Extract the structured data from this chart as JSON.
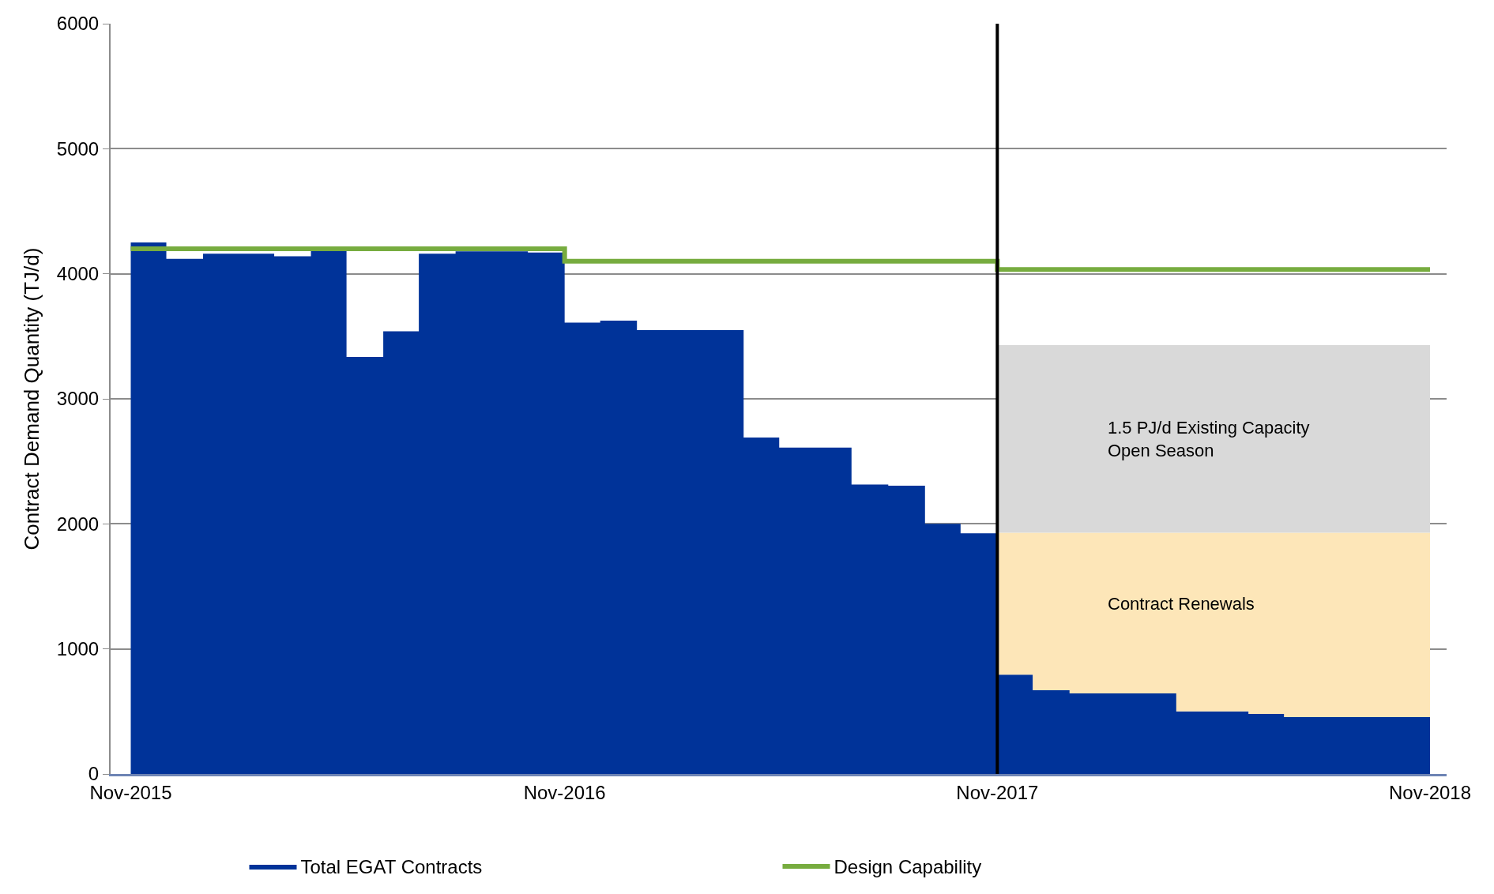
{
  "chart_data": {
    "type": "area",
    "stacked": true,
    "ylabel": "Contract Demand Quantity (TJ/d)",
    "x": [
      "2015-11",
      "2015-12",
      "2016-01",
      "2016-02",
      "2016-03",
      "2016-04",
      "2016-05",
      "2016-06",
      "2016-07",
      "2016-08",
      "2016-09",
      "2016-10",
      "2016-11",
      "2016-12",
      "2017-01",
      "2017-02",
      "2017-03",
      "2017-04",
      "2017-05",
      "2017-06",
      "2017-07",
      "2017-08",
      "2017-09",
      "2017-10",
      "2017-11",
      "2017-12",
      "2018-01",
      "2018-02",
      "2018-03",
      "2018-04",
      "2018-05",
      "2018-06",
      "2018-07",
      "2018-08",
      "2018-09",
      "2018-10",
      "2018-11"
    ],
    "series": [
      {
        "name": "Total EGAT Contracts",
        "color": "#003399",
        "values": [
          4250,
          4120,
          4160,
          4160,
          4140,
          4190,
          3335,
          3540,
          4160,
          4180,
          4180,
          4170,
          3610,
          3625,
          3550,
          3550,
          3550,
          2690,
          2610,
          2610,
          2315,
          2305,
          2000,
          1925,
          795,
          670,
          645,
          645,
          645,
          500,
          500,
          480,
          455,
          455,
          455,
          455,
          455
        ]
      },
      {
        "name": "Contract Renewals",
        "color": "#fde6b8",
        "values": [
          null,
          null,
          null,
          null,
          null,
          null,
          null,
          null,
          null,
          null,
          null,
          null,
          null,
          null,
          null,
          null,
          null,
          null,
          null,
          null,
          null,
          null,
          null,
          null,
          1135,
          1260,
          1285,
          1285,
          1285,
          1430,
          1430,
          1450,
          1475,
          1475,
          1475,
          1475,
          1475
        ]
      },
      {
        "name": "1.5 PJ/d Existing Capacity\nOpen Season",
        "color": "#d9d9d9",
        "values": [
          null,
          null,
          null,
          null,
          null,
          null,
          null,
          null,
          null,
          null,
          null,
          null,
          null,
          null,
          null,
          null,
          null,
          null,
          null,
          null,
          null,
          null,
          null,
          null,
          1500,
          1500,
          1500,
          1500,
          1500,
          1500,
          1500,
          1500,
          1500,
          1500,
          1500,
          1500,
          1500
        ]
      },
      {
        "name": "Design Capability",
        "type": "step",
        "color": "#77ac3f",
        "x": [
          "2015-11",
          "2016-11",
          "2017-11",
          "2018-11"
        ],
        "values": [
          4200,
          4100,
          4035,
          4035
        ]
      }
    ],
    "xlim": [
      "2015-10-15",
      "2018-11-15"
    ],
    "xticks": [
      {
        "value": "2015-11",
        "label": "Nov-2015"
      },
      {
        "value": "2016-11",
        "label": "Nov-2016"
      },
      {
        "value": "2017-11",
        "label": "Nov-2017"
      },
      {
        "value": "2018-11",
        "label": "Nov-2018"
      }
    ],
    "ylim": [
      0,
      6000
    ],
    "yticks": [
      0,
      1000,
      2000,
      3000,
      4000,
      5000,
      6000
    ],
    "ref_lines": [
      {
        "axis": "x",
        "value": "2017-11",
        "color": "#000000"
      }
    ],
    "grid": "y",
    "legend": "bottom"
  }
}
